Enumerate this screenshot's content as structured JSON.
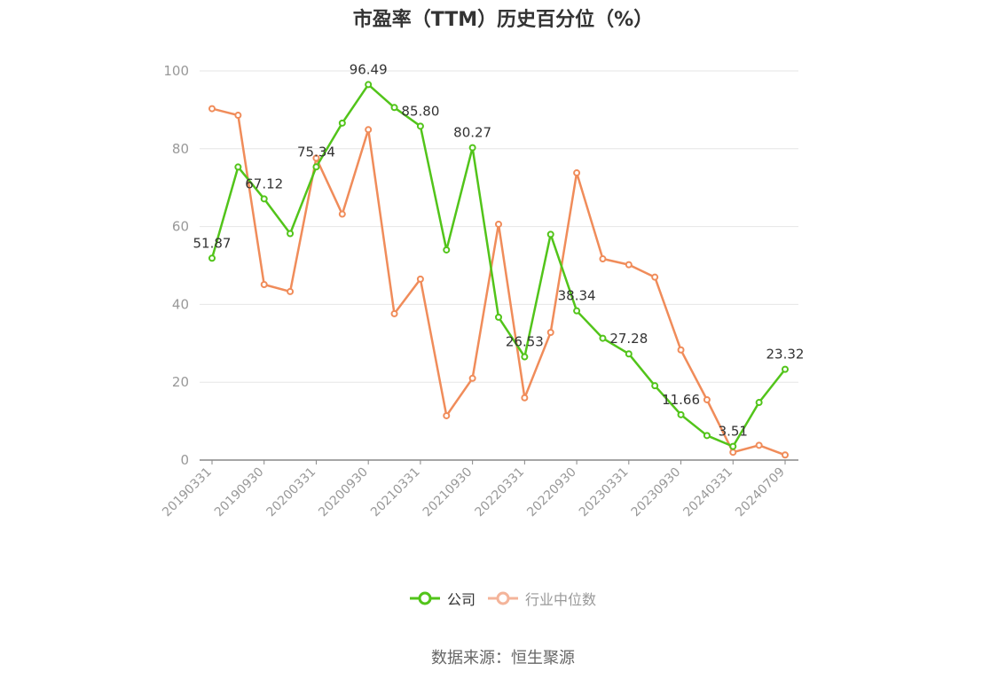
{
  "chart_data": {
    "type": "line",
    "title": "市盈率（TTM）历史百分位（%）",
    "xlabel": "",
    "ylabel": "",
    "ylim": [
      0,
      100
    ],
    "yticks": [
      0,
      20,
      40,
      60,
      80,
      100
    ],
    "grid": true,
    "legend_position": "bottom",
    "x": [
      "20190331",
      "20190630",
      "20190930",
      "20191231",
      "20200331",
      "20200630",
      "20200930",
      "20201231",
      "20210331",
      "20210630",
      "20210930",
      "20211231",
      "20220331",
      "20220630",
      "20220930",
      "20221231",
      "20230331",
      "20230630",
      "20230930",
      "20231231",
      "20240331",
      "20240630",
      "20240709"
    ],
    "x_tick_labels": [
      "20190331",
      "20190930",
      "20200331",
      "20200930",
      "20210331",
      "20210930",
      "20220331",
      "20220930",
      "20230331",
      "20230930",
      "20240331",
      "20240709"
    ],
    "series": [
      {
        "name": "公司",
        "color": "#52c41a",
        "values": [
          51.87,
          75.3,
          67.12,
          58.2,
          75.34,
          86.6,
          96.49,
          90.6,
          85.8,
          54.0,
          80.27,
          36.7,
          26.53,
          58.0,
          38.34,
          31.3,
          27.28,
          19.1,
          11.66,
          6.3,
          3.51,
          14.8,
          23.32
        ],
        "data_labels": [
          {
            "index": 0,
            "text": "51.87"
          },
          {
            "index": 2,
            "text": "67.12"
          },
          {
            "index": 4,
            "text": "75.34"
          },
          {
            "index": 6,
            "text": "96.49"
          },
          {
            "index": 8,
            "text": "85.80"
          },
          {
            "index": 10,
            "text": "80.27"
          },
          {
            "index": 12,
            "text": "26.53"
          },
          {
            "index": 14,
            "text": "38.34"
          },
          {
            "index": 16,
            "text": "27.28"
          },
          {
            "index": 18,
            "text": "11.66"
          },
          {
            "index": 20,
            "text": "3.51"
          },
          {
            "index": 22,
            "text": "23.32"
          }
        ]
      },
      {
        "name": "行业中位数",
        "color": "#f08c5a",
        "values": [
          90.3,
          88.6,
          45.1,
          43.3,
          77.6,
          63.2,
          84.9,
          37.6,
          46.5,
          11.4,
          21.0,
          60.6,
          16.0,
          32.8,
          73.8,
          51.7,
          50.2,
          47.0,
          28.3,
          15.5,
          2.0,
          3.8,
          1.3
        ]
      }
    ]
  },
  "legend": {
    "items": [
      {
        "label": "公司",
        "color": "#52c41a"
      },
      {
        "label": "行业中位数",
        "color": "#f4b49a"
      }
    ]
  },
  "footer": {
    "source": "数据来源：恒生聚源"
  }
}
